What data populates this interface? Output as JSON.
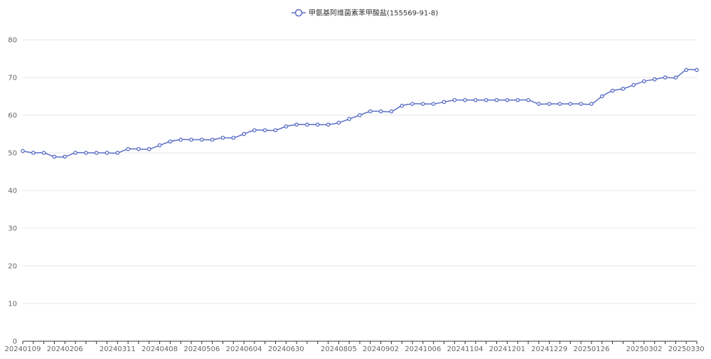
{
  "chart_data": {
    "type": "line",
    "title": "",
    "xlabel": "",
    "ylabel": "",
    "ylim": [
      0,
      80
    ],
    "y_ticks": [
      0,
      10,
      20,
      30,
      40,
      50,
      60,
      70,
      80
    ],
    "grid": true,
    "legend_position": "top-center",
    "colors": {
      "series": "#5b6fc6",
      "grid": "#e6e6e6",
      "axis": "#333333"
    },
    "x_tick_labels": [
      "20240109",
      "20240206",
      "20240311",
      "20240408",
      "20240506",
      "20240604",
      "20240630",
      "20240805",
      "20240902",
      "20241006",
      "20241104",
      "20241201",
      "20241229",
      "20250126",
      "20250302",
      "20250330"
    ],
    "x": [
      "20240109",
      "20240116",
      "20240123",
      "20240130",
      "20240206",
      "20240213",
      "20240220",
      "20240227",
      "20240304",
      "20240311",
      "20240318",
      "20240325",
      "20240401",
      "20240408",
      "20240415",
      "20240422",
      "20240429",
      "20240506",
      "20240513",
      "20240520",
      "20240527",
      "20240604",
      "20240611",
      "20240618",
      "20240625",
      "20240630",
      "20240707",
      "20240714",
      "20240721",
      "20240728",
      "20240805",
      "20240812",
      "20240819",
      "20240826",
      "20240902",
      "20240909",
      "20240916",
      "20240923",
      "20241006",
      "20241013",
      "20241020",
      "20241027",
      "20241104",
      "20241111",
      "20241118",
      "20241125",
      "20241201",
      "20241208",
      "20241215",
      "20241222",
      "20241229",
      "20250105",
      "20250112",
      "20250119",
      "20250126",
      "20250202",
      "20250209",
      "20250216",
      "20250223",
      "20250302",
      "20250309",
      "20250316",
      "20250323",
      "20250330",
      "20250406"
    ],
    "series": [
      {
        "name": "甲氨基阿维菌素苯甲酸盐(155569-91-8)",
        "values": [
          50.5,
          50,
          50,
          49,
          49,
          50,
          50,
          50,
          50,
          50,
          51,
          51,
          51,
          52,
          53,
          53.5,
          53.5,
          53.5,
          53.5,
          54,
          54,
          55,
          56,
          56,
          56,
          57,
          57.5,
          57.5,
          57.5,
          57.5,
          58,
          59,
          60,
          61,
          61,
          61,
          62.5,
          63,
          63,
          63,
          63.5,
          64,
          64,
          64,
          64,
          64,
          64,
          64,
          64,
          63,
          63,
          63,
          63,
          63,
          63,
          65,
          66.5,
          67,
          68,
          69,
          69.5,
          70,
          70,
          72,
          72
        ]
      }
    ]
  }
}
